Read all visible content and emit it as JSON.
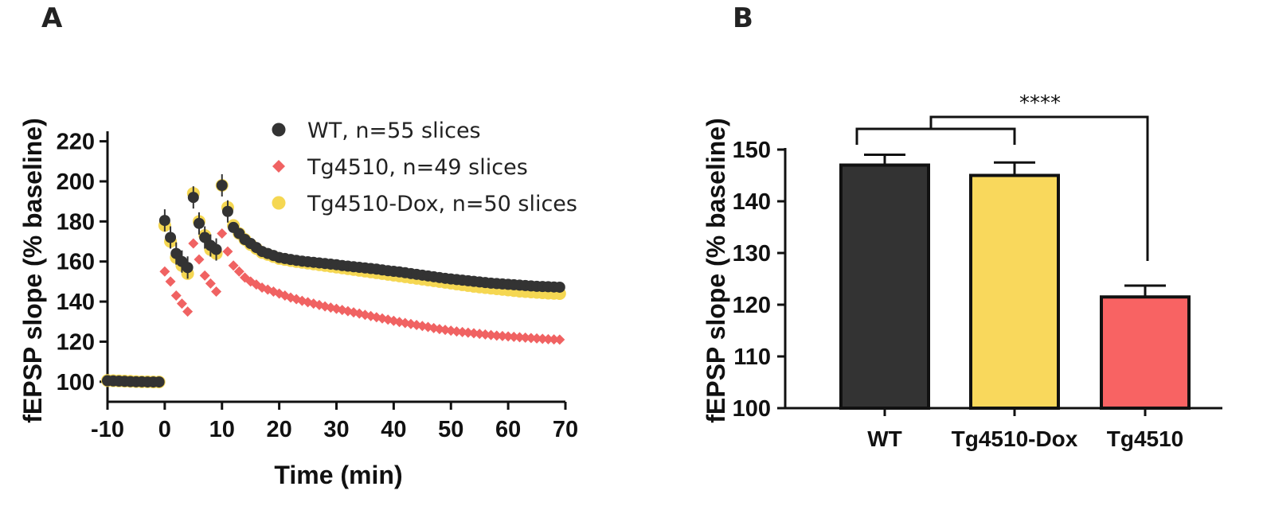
{
  "panels": {
    "a": "A",
    "b": "B"
  },
  "chart_data": [
    {
      "type": "scatter",
      "panel": "A",
      "xlabel": "Time (min)",
      "ylabel": "fEPSP slope (% baseline)",
      "xlim": [
        -10,
        70
      ],
      "ylim": [
        90,
        225
      ],
      "xticks": [
        -10,
        0,
        10,
        20,
        30,
        40,
        50,
        60,
        70
      ],
      "yticks": [
        100,
        120,
        140,
        160,
        180,
        200,
        220
      ],
      "legend_position": "top-right",
      "series": [
        {
          "name": "WT, n=55 slices",
          "color": "#333333",
          "marker": "circle",
          "points": [
            [
              -10,
              100.5
            ],
            [
              -9,
              100.4
            ],
            [
              -8,
              100.3
            ],
            [
              -7,
              100.2
            ],
            [
              -6,
              100.1
            ],
            [
              -5,
              100.0
            ],
            [
              -4,
              100.0
            ],
            [
              -3,
              99.9
            ],
            [
              -2,
              99.9
            ],
            [
              -1,
              99.9
            ],
            [
              0,
              180.5
            ],
            [
              1,
              172
            ],
            [
              2,
              164
            ],
            [
              3,
              160
            ],
            [
              4,
              157
            ],
            [
              5,
              192
            ],
            [
              6,
              179
            ],
            [
              7,
              172
            ],
            [
              8,
              168
            ],
            [
              9,
              166
            ],
            [
              10,
              198
            ],
            [
              11,
              185
            ],
            [
              12,
              177
            ],
            [
              13,
              174
            ],
            [
              14,
              171
            ],
            [
              15,
              169
            ],
            [
              16,
              167
            ],
            [
              17,
              165
            ],
            [
              18,
              164
            ],
            [
              19,
              163
            ],
            [
              20,
              162
            ],
            [
              21,
              161.5
            ],
            [
              22,
              161
            ],
            [
              23,
              160.6
            ],
            [
              24,
              160.2
            ],
            [
              25,
              159.9
            ],
            [
              26,
              159.6
            ],
            [
              27,
              159.3
            ],
            [
              28,
              159
            ],
            [
              29,
              158.7
            ],
            [
              30,
              158.4
            ],
            [
              31,
              158
            ],
            [
              32,
              157.7
            ],
            [
              33,
              157.4
            ],
            [
              34,
              157.1
            ],
            [
              35,
              156.8
            ],
            [
              36,
              156.5
            ],
            [
              37,
              156.2
            ],
            [
              38,
              155.8
            ],
            [
              39,
              155.4
            ],
            [
              40,
              155.1
            ],
            [
              41,
              154.8
            ],
            [
              42,
              154.4
            ],
            [
              43,
              154
            ],
            [
              44,
              153.6
            ],
            [
              45,
              153.2
            ],
            [
              46,
              152.8
            ],
            [
              47,
              152.4
            ],
            [
              48,
              152
            ],
            [
              49,
              151.6
            ],
            [
              50,
              151.3
            ],
            [
              51,
              151
            ],
            [
              52,
              150.7
            ],
            [
              53,
              150.4
            ],
            [
              54,
              150.1
            ],
            [
              55,
              149.8
            ],
            [
              56,
              149.5
            ],
            [
              57,
              149.2
            ],
            [
              58,
              149
            ],
            [
              59,
              148.8
            ],
            [
              60,
              148.6
            ],
            [
              61,
              148.4
            ],
            [
              62,
              148.2
            ],
            [
              63,
              148
            ],
            [
              64,
              147.8
            ],
            [
              65,
              147.6
            ],
            [
              66,
              147.5
            ],
            [
              67,
              147.4
            ],
            [
              68,
              147.3
            ],
            [
              69,
              147.2
            ]
          ]
        },
        {
          "name": "Tg4510, n=49 slices",
          "color": "#f06262",
          "marker": "diamond",
          "points": [
            [
              -10,
              100.6
            ],
            [
              -9,
              100.5
            ],
            [
              -8,
              100.4
            ],
            [
              -7,
              100.3
            ],
            [
              -6,
              100.2
            ],
            [
              -5,
              100.1
            ],
            [
              -4,
              100.0
            ],
            [
              -3,
              100.0
            ],
            [
              -2,
              99.9
            ],
            [
              -1,
              99.9
            ],
            [
              0,
              155
            ],
            [
              1,
              150
            ],
            [
              2,
              143
            ],
            [
              3,
              139
            ],
            [
              4,
              135
            ],
            [
              5,
              169
            ],
            [
              6,
              161
            ],
            [
              7,
              153
            ],
            [
              8,
              149
            ],
            [
              9,
              145
            ],
            [
              10,
              174
            ],
            [
              11,
              165
            ],
            [
              12,
              158
            ],
            [
              13,
              155
            ],
            [
              14,
              152
            ],
            [
              15,
              150
            ],
            [
              16,
              148.5
            ],
            [
              17,
              147
            ],
            [
              18,
              146
            ],
            [
              19,
              145
            ],
            [
              20,
              144
            ],
            [
              21,
              143
            ],
            [
              22,
              142
            ],
            [
              23,
              141.2
            ],
            [
              24,
              140.4
            ],
            [
              25,
              139.7
            ],
            [
              26,
              139
            ],
            [
              27,
              138.3
            ],
            [
              28,
              137.6
            ],
            [
              29,
              137
            ],
            [
              30,
              136.4
            ],
            [
              31,
              135.8
            ],
            [
              32,
              135.2
            ],
            [
              33,
              134.6
            ],
            [
              34,
              134
            ],
            [
              35,
              133.4
            ],
            [
              36,
              132.8
            ],
            [
              37,
              132.2
            ],
            [
              38,
              131.6
            ],
            [
              39,
              131
            ],
            [
              40,
              130.4
            ],
            [
              41,
              129.8
            ],
            [
              42,
              129.3
            ],
            [
              43,
              128.8
            ],
            [
              44,
              128.3
            ],
            [
              45,
              127.8
            ],
            [
              46,
              127.3
            ],
            [
              47,
              126.8
            ],
            [
              48,
              126.3
            ],
            [
              49,
              125.9
            ],
            [
              50,
              125.5
            ],
            [
              51,
              125.1
            ],
            [
              52,
              124.8
            ],
            [
              53,
              124.5
            ],
            [
              54,
              124.2
            ],
            [
              55,
              123.9
            ],
            [
              56,
              123.6
            ],
            [
              57,
              123.3
            ],
            [
              58,
              123
            ],
            [
              59,
              122.8
            ],
            [
              60,
              122.6
            ],
            [
              61,
              122.4
            ],
            [
              62,
              122.2
            ],
            [
              63,
              122
            ],
            [
              64,
              121.8
            ],
            [
              65,
              121.6
            ],
            [
              66,
              121.4
            ],
            [
              67,
              121.2
            ],
            [
              68,
              121.1
            ],
            [
              69,
              121
            ]
          ]
        },
        {
          "name": "Tg4510-Dox, n=50 slices",
          "color": "#f5d752",
          "marker": "circle",
          "points": [
            [
              -10,
              100.6
            ],
            [
              -9,
              100.5
            ],
            [
              -8,
              100.4
            ],
            [
              -7,
              100.3
            ],
            [
              -6,
              100.2
            ],
            [
              -5,
              100.1
            ],
            [
              -4,
              100.0
            ],
            [
              -3,
              100.0
            ],
            [
              -2,
              99.9
            ],
            [
              -1,
              99.9
            ],
            [
              0,
              178
            ],
            [
              1,
              170
            ],
            [
              2,
              162
            ],
            [
              3,
              158
            ],
            [
              4,
              154
            ],
            [
              5,
              194
            ],
            [
              6,
              180
            ],
            [
              7,
              173
            ],
            [
              8,
              166
            ],
            [
              9,
              164
            ],
            [
              10,
              198
            ],
            [
              11,
              187
            ],
            [
              12,
              178
            ],
            [
              13,
              174
            ],
            [
              14,
              171
            ],
            [
              15,
              168.5
            ],
            [
              16,
              166.5
            ],
            [
              17,
              164.5
            ],
            [
              18,
              163.5
            ],
            [
              19,
              162.5
            ],
            [
              20,
              161.5
            ],
            [
              21,
              161
            ],
            [
              22,
              160.5
            ],
            [
              23,
              160
            ],
            [
              24,
              159.6
            ],
            [
              25,
              159.2
            ],
            [
              26,
              158.8
            ],
            [
              27,
              158.4
            ],
            [
              28,
              158
            ],
            [
              29,
              157.6
            ],
            [
              30,
              157.2
            ],
            [
              31,
              156.8
            ],
            [
              32,
              156.4
            ],
            [
              33,
              156
            ],
            [
              34,
              155.6
            ],
            [
              35,
              155.2
            ],
            [
              36,
              154.8
            ],
            [
              37,
              154.4
            ],
            [
              38,
              154
            ],
            [
              39,
              153.6
            ],
            [
              40,
              153.2
            ],
            [
              41,
              152.8
            ],
            [
              42,
              152.4
            ],
            [
              43,
              152
            ],
            [
              44,
              151.6
            ],
            [
              45,
              151.2
            ],
            [
              46,
              150.8
            ],
            [
              47,
              150.4
            ],
            [
              48,
              150
            ],
            [
              49,
              149.6
            ],
            [
              50,
              149.2
            ],
            [
              51,
              148.8
            ],
            [
              52,
              148.4
            ],
            [
              53,
              148
            ],
            [
              54,
              147.6
            ],
            [
              55,
              147.3
            ],
            [
              56,
              147
            ],
            [
              57,
              146.7
            ],
            [
              58,
              146.4
            ],
            [
              59,
              146.1
            ],
            [
              60,
              145.8
            ],
            [
              61,
              145.5
            ],
            [
              62,
              145.2
            ],
            [
              63,
              145
            ],
            [
              64,
              144.8
            ],
            [
              65,
              144.6
            ],
            [
              66,
              144.4
            ],
            [
              67,
              144.2
            ],
            [
              68,
              144.1
            ],
            [
              69,
              144
            ]
          ]
        }
      ]
    },
    {
      "type": "bar",
      "panel": "B",
      "ylabel": "fEPSP slope (% baseline)",
      "ylim": [
        100,
        150
      ],
      "yticks": [
        100,
        110,
        120,
        130,
        140,
        150
      ],
      "categories": [
        "WT",
        "Tg4510-Dox",
        "Tg4510"
      ],
      "values": [
        147,
        145,
        121.5
      ],
      "errors": [
        2.0,
        2.5,
        2.2
      ],
      "colors": [
        "#333333",
        "#f9d85c",
        "#f86363"
      ],
      "significance": {
        "text": "****",
        "group": [
          "WT",
          "Tg4510-Dox"
        ],
        "vs": "Tg4510"
      }
    }
  ]
}
